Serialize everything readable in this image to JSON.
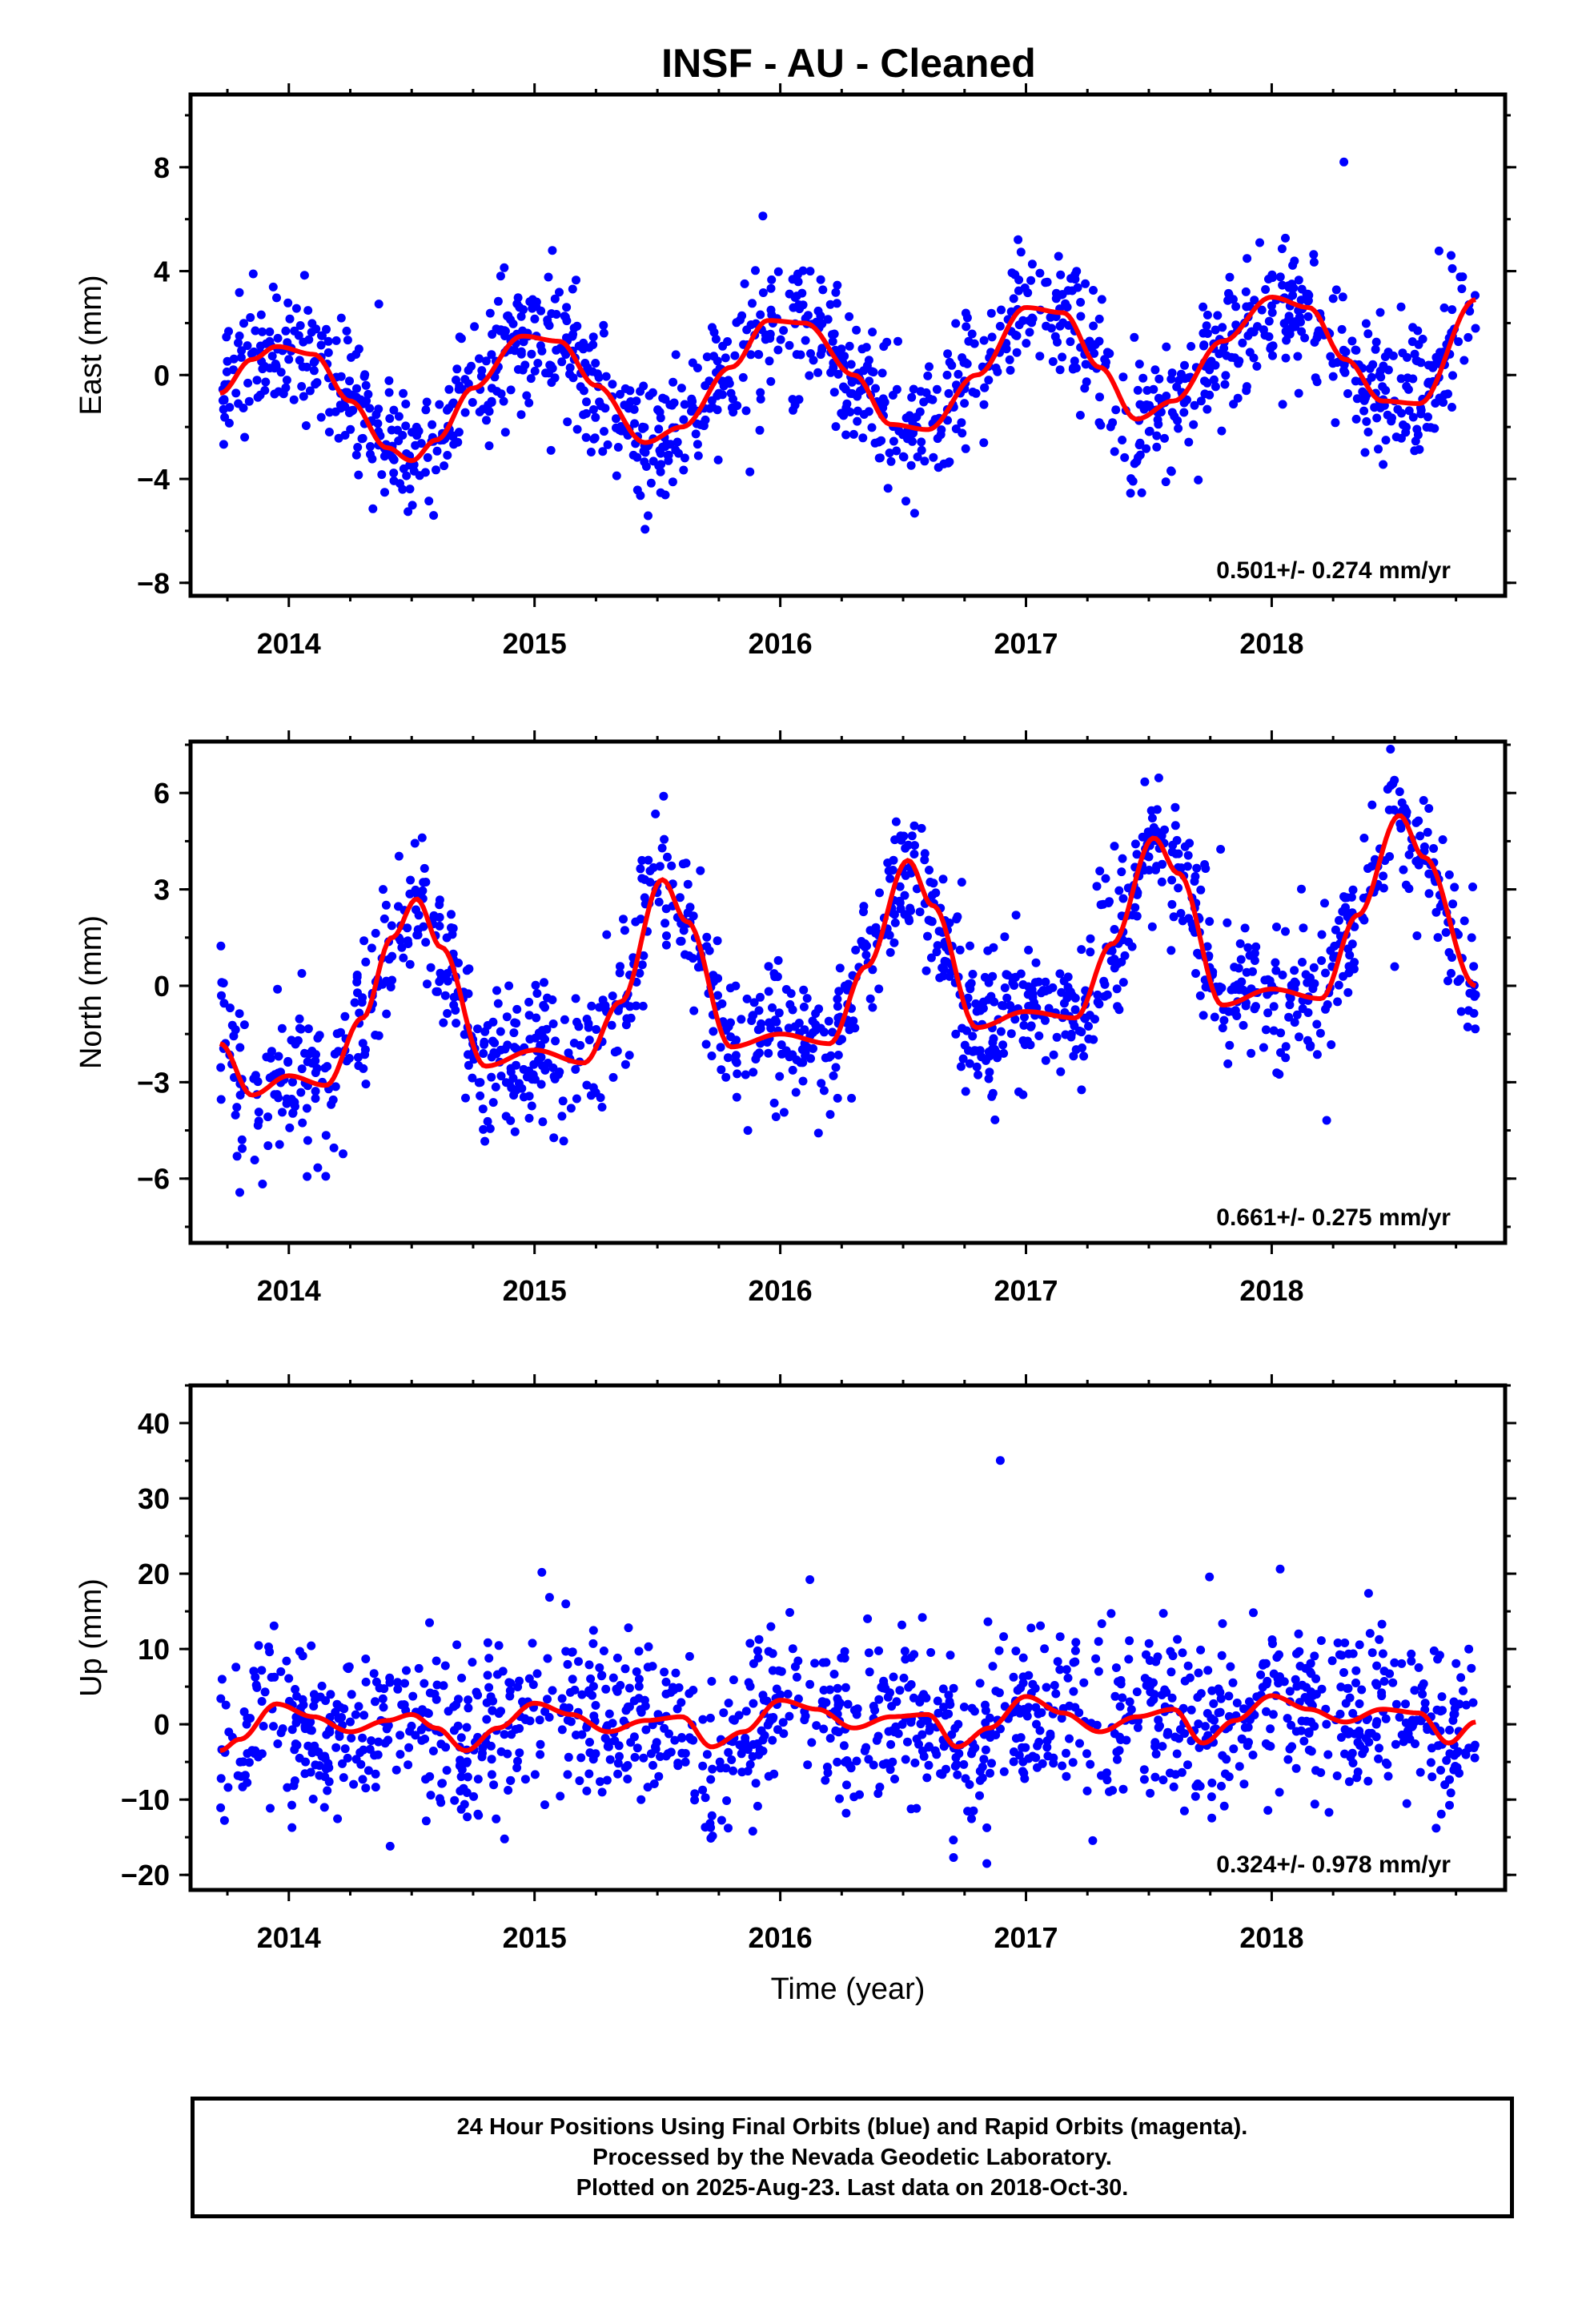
{
  "title": "INSF  - AU - Cleaned",
  "footer": {
    "line1": "24 Hour Positions Using Final Orbits (blue) and Rapid Orbits (magenta).",
    "line2": "Processed by the Nevada Geodetic Laboratory.",
    "line3": "Plotted on 2025-Aug-23. Last data on 2018-Oct-30."
  },
  "colors": {
    "points": "#0000ff",
    "fit": "#ff0000",
    "axes": "#000000"
  },
  "chart_data": [
    {
      "type": "scatter",
      "ylabel": "East (mm)",
      "xlabel": "",
      "xlim": [
        2013.6,
        2018.95
      ],
      "ylim": [
        -8.5,
        10.8
      ],
      "x_ticks": [
        2014,
        2015,
        2016,
        2017,
        2018
      ],
      "x_tick_labels": [
        "2014",
        "2015",
        "2016",
        "2017",
        "2018"
      ],
      "y_ticks": [
        -8,
        -4,
        0,
        4,
        8
      ],
      "y_tick_labels": [
        "−8",
        "−4",
        "0",
        "4",
        "8"
      ],
      "rate_label": "0.501+/- 0.274 mm/yr",
      "series": [
        {
          "kind": "points",
          "data_range": [
            2013.72,
            2018.83
          ],
          "scatter_sd": 1.25,
          "n": 1300
        },
        {
          "kind": "fit",
          "x": [
            2013.72,
            2013.85,
            2013.95,
            2014.1,
            2014.25,
            2014.4,
            2014.5,
            2014.6,
            2014.75,
            2014.95,
            2015.1,
            2015.25,
            2015.45,
            2015.6,
            2015.8,
            2015.95,
            2016.1,
            2016.3,
            2016.45,
            2016.6,
            2016.8,
            2017.0,
            2017.15,
            2017.3,
            2017.45,
            2017.6,
            2017.8,
            2018.0,
            2018.15,
            2018.3,
            2018.45,
            2018.6,
            2018.83
          ],
          "y": [
            -0.7,
            0.6,
            1.1,
            0.8,
            -1.0,
            -2.8,
            -3.3,
            -2.5,
            -0.5,
            1.5,
            1.3,
            -0.4,
            -2.6,
            -2.0,
            0.3,
            2.1,
            2.0,
            0.0,
            -1.9,
            -2.1,
            0.0,
            2.6,
            2.4,
            0.3,
            -1.7,
            -1.0,
            1.3,
            3.0,
            2.6,
            0.6,
            -1.0,
            -1.1,
            2.9
          ]
        }
      ]
    },
    {
      "type": "scatter",
      "ylabel": "North (mm)",
      "xlabel": "",
      "xlim": [
        2013.6,
        2018.95
      ],
      "ylim": [
        -8.0,
        7.6
      ],
      "x_ticks": [
        2014,
        2015,
        2016,
        2017,
        2018
      ],
      "x_tick_labels": [
        "2014",
        "2015",
        "2016",
        "2017",
        "2018"
      ],
      "y_ticks": [
        -6,
        -3,
        0,
        3,
        6
      ],
      "y_tick_labels": [
        "−6",
        "−3",
        "0",
        "3",
        "6"
      ],
      "rate_label": "0.661+/- 0.275 mm/yr",
      "series": [
        {
          "kind": "points",
          "data_range": [
            2013.72,
            2018.83
          ],
          "scatter_sd": 1.1,
          "n": 1300
        },
        {
          "kind": "fit",
          "x": [
            2013.72,
            2013.85,
            2014.0,
            2014.15,
            2014.3,
            2014.42,
            2014.52,
            2014.62,
            2014.8,
            2015.0,
            2015.2,
            2015.35,
            2015.52,
            2015.62,
            2015.8,
            2016.0,
            2016.2,
            2016.35,
            2016.52,
            2016.62,
            2016.8,
            2017.0,
            2017.2,
            2017.35,
            2017.52,
            2017.62,
            2017.8,
            2018.0,
            2018.2,
            2018.35,
            2018.52,
            2018.62,
            2018.83
          ],
          "y": [
            -1.8,
            -3.4,
            -2.8,
            -3.1,
            -1.0,
            1.5,
            2.7,
            1.2,
            -2.5,
            -2.0,
            -2.4,
            -0.5,
            3.3,
            2.0,
            -1.9,
            -1.5,
            -1.8,
            0.6,
            3.9,
            2.5,
            -1.3,
            -0.8,
            -1.0,
            1.3,
            4.6,
            3.5,
            -0.6,
            -0.1,
            -0.4,
            2.2,
            5.3,
            4.0,
            0.0
          ]
        }
      ]
    },
    {
      "type": "scatter",
      "ylabel": "Up (mm)",
      "xlabel": "Time (year)",
      "xlim": [
        2013.6,
        2018.95
      ],
      "ylim": [
        -22.0,
        45.0
      ],
      "x_ticks": [
        2014,
        2015,
        2016,
        2017,
        2018
      ],
      "x_tick_labels": [
        "2014",
        "2015",
        "2016",
        "2017",
        "2018"
      ],
      "y_ticks": [
        -20,
        -10,
        0,
        10,
        20,
        30,
        40
      ],
      "y_tick_labels": [
        "−20",
        "−10",
        "0",
        "10",
        "20",
        "30",
        "40"
      ],
      "rate_label": "0.324+/- 0.978 mm/yr",
      "series": [
        {
          "kind": "points",
          "data_range": [
            2013.72,
            2018.83
          ],
          "scatter_sd": 5.5,
          "n": 1300
        },
        {
          "kind": "fit",
          "x": [
            2013.72,
            2013.8,
            2013.95,
            2014.1,
            2014.25,
            2014.4,
            2014.5,
            2014.6,
            2014.72,
            2014.85,
            2015.0,
            2015.15,
            2015.3,
            2015.45,
            2015.6,
            2015.72,
            2015.85,
            2016.0,
            2016.15,
            2016.3,
            2016.45,
            2016.6,
            2016.72,
            2016.85,
            2017.0,
            2017.15,
            2017.3,
            2017.45,
            2017.6,
            2017.72,
            2017.85,
            2018.0,
            2018.15,
            2018.3,
            2018.45,
            2018.6,
            2018.72,
            2018.83
          ],
          "y": [
            -3.5,
            -2.0,
            2.7,
            1.0,
            -1.0,
            0.5,
            1.3,
            -0.5,
            -3.5,
            -0.5,
            2.8,
            1.3,
            -1.0,
            0.5,
            1.0,
            -3.0,
            -1.0,
            3.2,
            2.0,
            -0.5,
            1.0,
            1.3,
            -3.0,
            -0.5,
            3.7,
            1.5,
            -1.0,
            1.0,
            2.0,
            -2.5,
            0.5,
            3.8,
            2.0,
            0.3,
            2.0,
            1.5,
            -2.5,
            0.3
          ]
        }
      ]
    }
  ]
}
